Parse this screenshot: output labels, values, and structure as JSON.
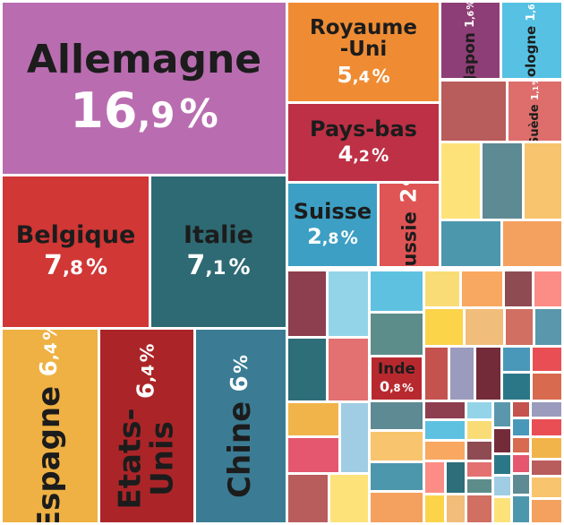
{
  "chart_data": {
    "type": "treemap",
    "unit": "%",
    "decimal_separator": ",",
    "items": [
      {
        "name": "Allemagne",
        "value": 16.9,
        "value_text": [
          "16",
          ",9",
          "%"
        ],
        "color": "#b96db0"
      },
      {
        "name": "Royaume\n-Uni",
        "value": 5.4,
        "value_text": [
          "5",
          ",4",
          "%"
        ],
        "color": "#ef8c33"
      },
      {
        "name": "Japon",
        "value": 1.6,
        "value_text": [
          "1",
          ",6",
          "%"
        ],
        "color": "#8e3e76"
      },
      {
        "name": "Pologne",
        "value": 1.6,
        "value_text": [
          "1",
          ",6",
          "%"
        ],
        "color": "#56c1e3"
      },
      {
        "name": "Suède",
        "value": 1.1,
        "value_text": [
          "1",
          ",1",
          "%"
        ],
        "color": "#dd6e6b"
      },
      {
        "name": "Pays-bas",
        "value": 4.2,
        "value_text": [
          "4",
          ",2",
          "%"
        ],
        "color": "#bd3045"
      },
      {
        "name": "Belgique",
        "value": 7.8,
        "value_text": [
          "7",
          ",8",
          "%"
        ],
        "color": "#d03735"
      },
      {
        "name": "Italie",
        "value": 7.1,
        "value_text": [
          "7",
          ",1",
          "%"
        ],
        "color": "#2e6a73"
      },
      {
        "name": "Suisse",
        "value": 2.8,
        "value_text": [
          "2",
          ",8",
          "%"
        ],
        "color": "#3d9fc3"
      },
      {
        "name": "Russie",
        "value": 2,
        "value_text": [
          "2",
          "",
          "%"
        ],
        "color": "#df5454"
      },
      {
        "name": "Espagne",
        "value": 6.4,
        "value_text": [
          "6",
          ",4",
          "%"
        ],
        "color": "#efb143"
      },
      {
        "name": "Etats-Unis",
        "value": 6.4,
        "value_text": [
          "6",
          ",4",
          "%"
        ],
        "color": "#ab2528"
      },
      {
        "name": "Chine",
        "value": 6,
        "value_text": [
          "6",
          "",
          "%"
        ],
        "color": "#3b7c94"
      },
      {
        "name": "Inde",
        "value": 0.8,
        "value_text": [
          "0",
          ",8",
          "%"
        ],
        "color": "#b8292f"
      }
    ],
    "unlabeled_tile_colors": [
      "#b95c5c",
      "#fde27a",
      "#5e8a93",
      "#f8c46d",
      "#4d97ad",
      "#f4a05e",
      "#8d3e4f",
      "#93d4e8",
      "#5ec1e0",
      "#f9dc75",
      "#f8a860",
      "#8e4b52",
      "#fc8c86",
      "#2d6e79",
      "#e37171",
      "#5d8d8b",
      "#fcd44a",
      "#f1bd7a",
      "#d06f62",
      "#5a97ac",
      "#c4534f",
      "#9a9bbd",
      "#732b39",
      "#4a98b9",
      "#e84e53",
      "#2c7787",
      "#d76a4f",
      "#f1b44a",
      "#a0cde4",
      "#e4576f"
    ]
  }
}
